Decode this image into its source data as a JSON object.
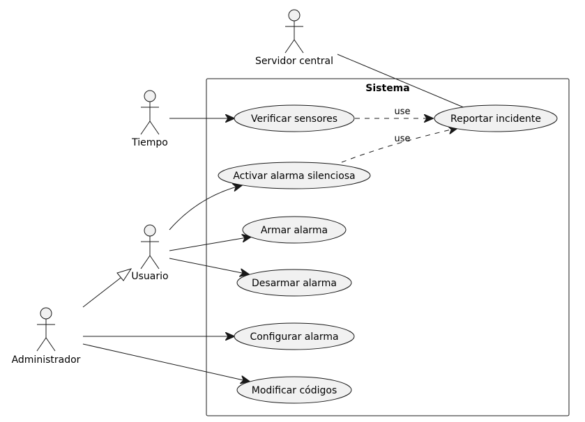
{
  "system": {
    "title": "Sistema"
  },
  "actors": {
    "servidor": "Servidor central",
    "tiempo": "Tiempo",
    "usuario": "Usuario",
    "administrador": "Administrador"
  },
  "use_cases": {
    "verificar": "Verificar sensores",
    "reportar": "Reportar incidente",
    "activar": "Activar alarma silenciosa",
    "armar": "Armar alarma",
    "desarmar": "Desarmar alarma",
    "configurar": "Configurar alarma",
    "modificar": "Modificar códigos"
  },
  "edge_labels": {
    "use1": "use",
    "use2": "use"
  }
}
